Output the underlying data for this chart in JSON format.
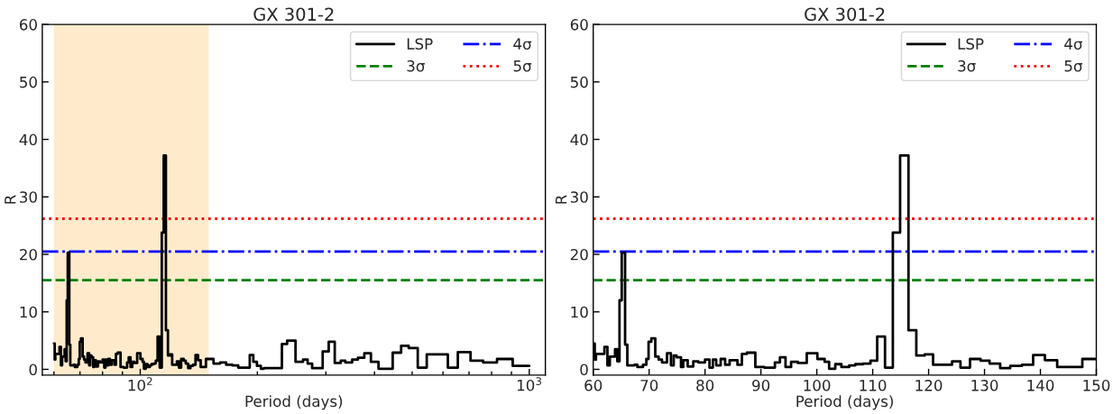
{
  "chart_data": [
    {
      "type": "step",
      "title": "GX 301-2",
      "xlabel": "Period (days)",
      "ylabel": "R",
      "log": "x",
      "xlim": [
        56,
        1100
      ],
      "xticks": [
        {
          "value": 60,
          "label": null
        },
        {
          "value": 70,
          "label": null
        },
        {
          "value": 80,
          "label": null
        },
        {
          "value": 90,
          "label": null
        },
        {
          "value": 100,
          "label": "10$^{2}$"
        },
        {
          "value": 200,
          "label": null
        },
        {
          "value": 300,
          "label": null
        },
        {
          "value": 400,
          "label": null
        },
        {
          "value": 500,
          "label": null
        },
        {
          "value": 600,
          "label": null
        },
        {
          "value": 700,
          "label": null
        },
        {
          "value": 800,
          "label": null
        },
        {
          "value": 900,
          "label": null
        },
        {
          "value": 1000,
          "label": "10$^{3}$"
        }
      ],
      "ylim": [
        -1,
        60
      ],
      "yticks": [
        0,
        10,
        20,
        30,
        40,
        50,
        60
      ],
      "grid": false,
      "legend": "top right",
      "series": [
        {
          "name": "LSP",
          "color": "#000000",
          "x": [
            60.0,
            60.27,
            60.49,
            62.0,
            62.54,
            62.97,
            63.9,
            64.3,
            64.7,
            65.1,
            65.7,
            66.1,
            67.4,
            67.9,
            68.9,
            69.5,
            69.9,
            70.4,
            71.1,
            71.7,
            72.3,
            73.2,
            73.9,
            74.4,
            74.9,
            75.7,
            76.1,
            76.9,
            77.9,
            78.8,
            80.0,
            80.8,
            81.4,
            82.0,
            82.8,
            83.6,
            84.4,
            85.8,
            86.6,
            87.5,
            89.0,
            90.6,
            92.5,
            93.4,
            94.4,
            95.4,
            96.6,
            98.2,
            100.1,
            101.4,
            102.2,
            103.3,
            104.4,
            105.8,
            106.9,
            108.3,
            109.6,
            110.8,
            112.2,
            113.6,
            114.9,
            116.4,
            117.8,
            119.3,
            120.8,
            124.2,
            125.7,
            127.4,
            129.3,
            130.9,
            132.8,
            134.6,
            136.7,
            138.7,
            140.8,
            143.0,
            147.5,
            154.3,
            160.5,
            166.3,
            172.4,
            178.6,
            191.2,
            195.3,
            199.5,
            204.2,
            207.9,
            231.3,
            238.5,
            250.7,
            262.1,
            269.3,
            276.6,
            294.4,
            305.1,
            316.2,
            327.7,
            336.6,
            350.6,
            362.7,
            376.7,
            391.7,
            409.7,
            445.6,
            468.4,
            489.8,
            516.8,
            545.1,
            617.6,
            655.2,
            706.3,
            760.9,
            826.1,
            906.6,
            1000
          ],
          "values": [
            4.5,
            1.7,
            2.7,
            3.9,
            0.7,
            2.2,
            3.5,
            1.4,
            12,
            20.3,
            4.3,
            0.7,
            0.8,
            0.4,
            0.8,
            1.8,
            4.8,
            5.4,
            2.2,
            1.7,
            1.2,
            2.8,
            0.7,
            2.4,
            2.1,
            0.4,
            1.6,
            0.5,
            1.4,
            1.2,
            1.7,
            0.3,
            1.7,
            0.7,
            1.8,
            0.8,
            1.6,
            0.8,
            2.7,
            2.9,
            0.4,
            0.3,
            1.2,
            2.1,
            0.4,
            1.3,
            1.1,
            2.8,
            1.8,
            1.3,
            0.1,
            0.9,
            0.4,
            0.7,
            0.9,
            1.0,
            1.5,
            5.7,
            0.3,
            23.8,
            37.2,
            6.8,
            2.4,
            2.6,
            0.8,
            1.4,
            0.3,
            1.8,
            1.5,
            1.0,
            0.2,
            0.6,
            0.8,
            2.5,
            1.6,
            0.4,
            1.8,
            1.0,
            1.2,
            0.8,
            0.7,
            0.3,
            2.5,
            1.3,
            0.6,
            0.1,
            0.2,
            4.4,
            5.0,
            1.3,
            1.7,
            1.0,
            0.2,
            3.1,
            4.8,
            1.1,
            1.5,
            1.2,
            1.7,
            2.0,
            2.8,
            1.3,
            0.1,
            2.9,
            4.1,
            3.7,
            0.3,
            2.6,
            0.3,
            3.0,
            1.5,
            1.2,
            1.8,
            0.6,
            0.6
          ]
        }
      ],
      "ref_lines": [
        {
          "axis": "y",
          "value": 15.5,
          "label": "3σ",
          "color": "#008000",
          "line_style": "dashed"
        },
        {
          "axis": "y",
          "value": 20.5,
          "label": "4σ",
          "color": "#0000ff",
          "line_style": "dashdot"
        },
        {
          "axis": "y",
          "value": 26.2,
          "label": "5σ",
          "color": "#ff0000",
          "line_style": "dotted"
        }
      ],
      "bands": [
        {
          "axis": "x",
          "from": 60,
          "to": 150,
          "color": "#ffebcc"
        }
      ]
    },
    {
      "type": "step",
      "title": "GX 301-2",
      "xlabel": "Period (days)",
      "ylabel": "R",
      "xlim": [
        60,
        150
      ],
      "xticks": [
        60,
        70,
        80,
        90,
        100,
        110,
        120,
        130,
        140,
        150
      ],
      "ylim": [
        -1,
        60
      ],
      "yticks": [
        0,
        10,
        20,
        30,
        40,
        50,
        60
      ],
      "grid": false,
      "legend": "top right",
      "series": [
        {
          "name": "LSP",
          "color": "#000000",
          "x": [
            60.0,
            60.27,
            60.49,
            62.0,
            62.54,
            62.97,
            63.9,
            64.3,
            64.7,
            65.1,
            65.7,
            66.1,
            67.4,
            67.9,
            68.9,
            69.5,
            69.9,
            70.4,
            71.1,
            71.7,
            72.3,
            73.2,
            73.9,
            74.4,
            74.9,
            75.7,
            76.1,
            76.9,
            77.9,
            78.8,
            80.0,
            80.8,
            81.4,
            82.0,
            82.8,
            83.6,
            84.4,
            85.8,
            86.6,
            87.5,
            89.0,
            90.6,
            92.5,
            93.4,
            94.4,
            95.4,
            96.6,
            98.2,
            100.1,
            101.4,
            102.2,
            103.3,
            104.4,
            105.8,
            106.9,
            108.3,
            109.6,
            110.8,
            112.2,
            113.6,
            114.9,
            116.4,
            117.8,
            119.3,
            120.8,
            124.2,
            125.7,
            127.4,
            129.3,
            130.9,
            132.8,
            134.6,
            136.7,
            138.7,
            140.8,
            143.0,
            147.5,
            150
          ],
          "values": [
            4.5,
            1.7,
            2.7,
            3.9,
            0.7,
            2.2,
            3.5,
            1.4,
            12,
            20.3,
            4.3,
            0.7,
            0.8,
            0.4,
            0.8,
            1.8,
            4.8,
            5.4,
            2.2,
            1.7,
            1.2,
            2.8,
            0.7,
            2.4,
            2.1,
            0.4,
            1.6,
            0.5,
            1.4,
            1.2,
            1.7,
            0.3,
            1.7,
            0.7,
            1.8,
            0.8,
            1.6,
            0.8,
            2.7,
            2.9,
            0.4,
            0.3,
            1.2,
            2.1,
            0.4,
            1.3,
            1.1,
            2.8,
            1.8,
            1.3,
            0.1,
            0.9,
            0.4,
            0.7,
            0.9,
            1.0,
            1.5,
            5.7,
            0.3,
            23.8,
            37.2,
            6.8,
            2.4,
            2.6,
            0.8,
            1.4,
            0.3,
            1.8,
            1.5,
            1.0,
            0.2,
            0.6,
            0.8,
            2.5,
            1.6,
            0.4,
            1.8,
            1.8
          ]
        }
      ],
      "ref_lines": [
        {
          "axis": "y",
          "value": 15.5,
          "label": "3σ",
          "color": "#008000",
          "line_style": "dashed"
        },
        {
          "axis": "y",
          "value": 20.5,
          "label": "4σ",
          "color": "#0000ff",
          "line_style": "dashdot"
        },
        {
          "axis": "y",
          "value": 26.2,
          "label": "5σ",
          "color": "#ff0000",
          "line_style": "dotted"
        }
      ]
    }
  ]
}
